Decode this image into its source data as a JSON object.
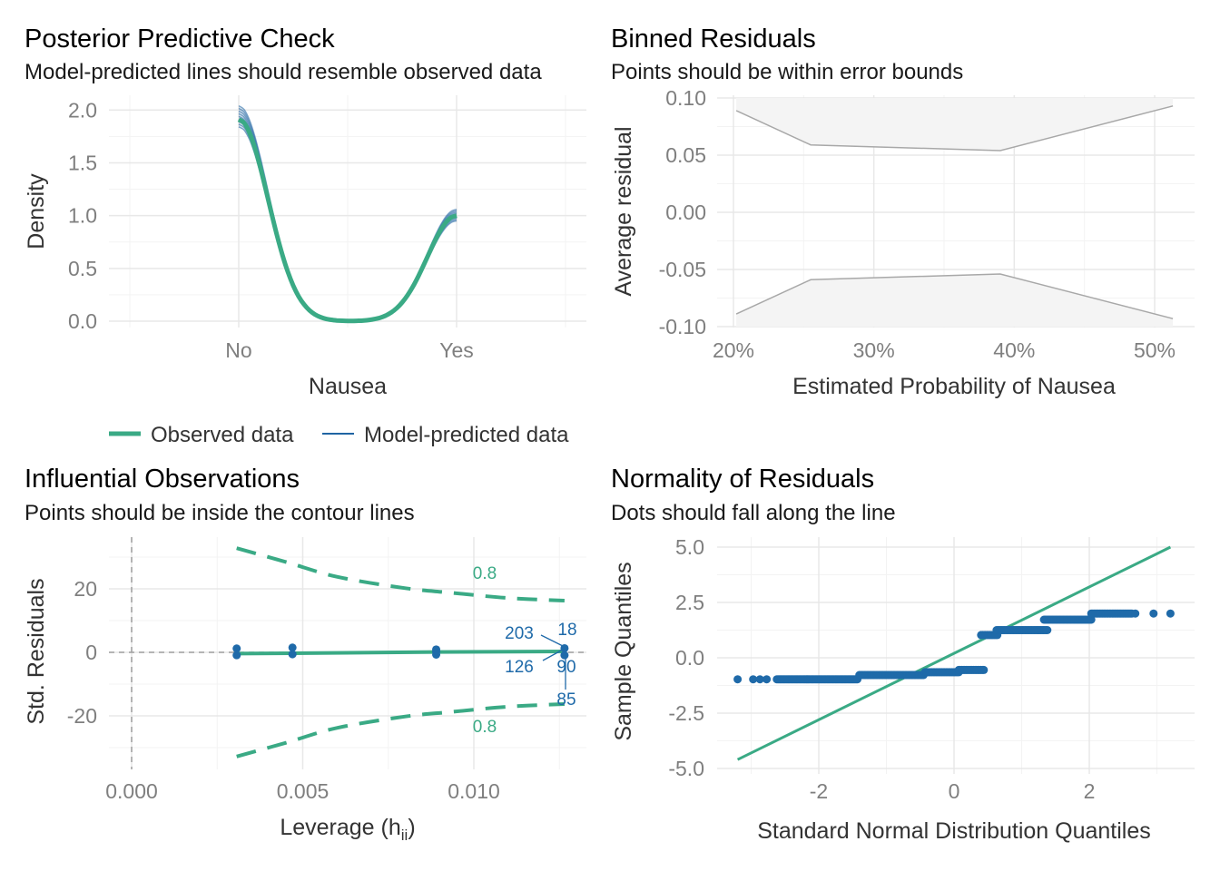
{
  "colors": {
    "observed": "#3aaa85",
    "predicted": "#1f64a3",
    "points": "#1f6aa9",
    "contour": "#3aaa85",
    "grid_major": "#e8e8e8",
    "grid_minor": "#f3f3f3",
    "band_fill": "#f4f4f4",
    "band_line": "#a8a8a8"
  },
  "chart_data": [
    {
      "id": "ppc",
      "type": "line",
      "title": "Posterior Predictive Check",
      "subtitle": "Model-predicted lines should resemble observed data",
      "xlabel": "Nausea",
      "ylabel": "Density",
      "x_ticks": [
        "No",
        "Yes"
      ],
      "y_ticks": [
        0.0,
        0.5,
        1.0,
        1.5,
        2.0
      ],
      "y_tick_labels": [
        "0.0",
        "0.5",
        "1.0",
        "1.5",
        "2.0"
      ],
      "ylim": [
        -0.06,
        2.14
      ],
      "grid": true,
      "legend": {
        "position": "bottom",
        "entries": [
          {
            "label": "Observed data",
            "series": "observed"
          },
          {
            "label": "Model-predicted data",
            "series": "predicted"
          }
        ]
      },
      "series": [
        {
          "name": "Observed data",
          "x": [
            "No",
            "Yes"
          ],
          "values": [
            1.91,
            1.0
          ]
        },
        {
          "name": "Model-predicted data",
          "x": [
            "No",
            "Yes"
          ],
          "values_range": [
            [
              1.84,
              2.04
            ],
            [
              0.95,
              1.06
            ]
          ]
        }
      ]
    },
    {
      "id": "binned",
      "type": "area",
      "title": "Binned Residuals",
      "subtitle": "Points should be within error bounds",
      "xlabel": "Estimated Probability of Nausea",
      "ylabel": "Average residual",
      "x_ticks": [
        0.2,
        0.3,
        0.4,
        0.5
      ],
      "x_tick_labels": [
        "20%",
        "30%",
        "40%",
        "50%"
      ],
      "y_ticks": [
        0.1,
        0.05,
        0.0,
        -0.05,
        -0.1
      ],
      "y_tick_labels": [
        "0.10",
        "0.05",
        "0.00",
        "-0.05",
        "-0.10"
      ],
      "xlim": [
        0.18,
        0.525
      ],
      "ylim": [
        -0.1,
        0.1
      ],
      "grid": true,
      "error_bounds": {
        "x": [
          0.202,
          0.255,
          0.39,
          0.513
        ],
        "upper": [
          0.089,
          0.059,
          0.054,
          0.093
        ],
        "lower": [
          -0.089,
          -0.059,
          -0.054,
          -0.093
        ]
      }
    },
    {
      "id": "influential",
      "type": "scatter",
      "title": "Influential Observations",
      "subtitle": "Points should be inside the contour lines",
      "xlabel": "Leverage (h",
      "xlabel_sub": "ii",
      "xlabel_close": ")",
      "ylabel": "Std. Residuals",
      "x_ticks": [
        0.0,
        0.005,
        0.01
      ],
      "x_tick_labels": [
        "0.000",
        "0.005",
        "0.010"
      ],
      "y_ticks": [
        20,
        0,
        -20
      ],
      "y_tick_labels": [
        "20",
        "0",
        "-20"
      ],
      "xlim": [
        -0.00065,
        0.0133
      ],
      "ylim": [
        -36,
        36
      ],
      "grid": true,
      "contour_label": "0.8",
      "contour_x": [
        0.00307,
        0.0045,
        0.006,
        0.008,
        0.0093,
        0.011,
        0.01265
      ],
      "contour_upper": [
        32.8,
        28.5,
        23.8,
        20.2,
        18.8,
        17.1,
        16.3
      ],
      "contour_lower": [
        -32.8,
        -28.5,
        -23.8,
        -20.2,
        -18.8,
        -17.1,
        -16.3
      ],
      "fit_line": {
        "x": [
          0.00307,
          0.0047,
          0.0089,
          0.01265
        ],
        "y": [
          -0.4,
          -0.3,
          0.1,
          0.3
        ]
      },
      "points": {
        "x": [
          0.00307,
          0.00307,
          0.0047,
          0.0047,
          0.0089,
          0.0089,
          0.0089,
          0.01265,
          0.01265
        ],
        "y": [
          1.2,
          -0.9,
          1.5,
          -0.6,
          0.9,
          0.2,
          -0.7,
          1.3,
          -0.9
        ]
      },
      "labels": [
        "203",
        "18",
        "126",
        "90",
        "85"
      ]
    },
    {
      "id": "qq",
      "type": "scatter",
      "title": "Normality of Residuals",
      "subtitle": "Dots should fall along the line",
      "xlabel": "Standard Normal Distribution Quantiles",
      "ylabel": "Sample Quantiles",
      "x_ticks": [
        -2,
        0,
        2
      ],
      "x_tick_labels": [
        "-2",
        "0",
        "2"
      ],
      "y_ticks": [
        5.0,
        2.5,
        0.0,
        -2.5,
        -5.0
      ],
      "y_tick_labels": [
        "5.0",
        "2.5",
        "0.0",
        "-2.5",
        "-5.0"
      ],
      "xlim": [
        -3.5,
        3.5
      ],
      "ylim": [
        -5.0,
        5.0
      ],
      "grid": true,
      "reference_line": {
        "x": [
          -3.2,
          3.2
        ],
        "y": [
          -4.6,
          5.0
        ]
      },
      "segments": [
        {
          "x_start": -3.2,
          "x_end": -3.2,
          "y": -0.97,
          "n": 1
        },
        {
          "x_start": -2.97,
          "x_end": -2.77,
          "y": -0.97,
          "n": 3
        },
        {
          "x_start": -2.62,
          "x_end": -1.43,
          "y": -0.97,
          "n": 70
        },
        {
          "x_start": -1.4,
          "x_end": -0.45,
          "y": -0.78,
          "n": 50
        },
        {
          "x_start": -0.43,
          "x_end": 0.07,
          "y": -0.65,
          "n": 25
        },
        {
          "x_start": 0.07,
          "x_end": 0.44,
          "y": -0.55,
          "n": 18
        },
        {
          "x_start": 0.4,
          "x_end": 0.64,
          "y": 1.03,
          "n": 12
        },
        {
          "x_start": 0.63,
          "x_end": 1.38,
          "y": 1.25,
          "n": 40
        },
        {
          "x_start": 1.33,
          "x_end": 2.03,
          "y": 1.72,
          "n": 40
        },
        {
          "x_start": 2.03,
          "x_end": 2.63,
          "y": 2.0,
          "n": 30
        },
        {
          "x_start": 2.68,
          "x_end": 2.95,
          "y": 2.0,
          "n": 2
        },
        {
          "x_start": 3.2,
          "x_end": 3.2,
          "y": 2.0,
          "n": 1
        }
      ]
    }
  ]
}
